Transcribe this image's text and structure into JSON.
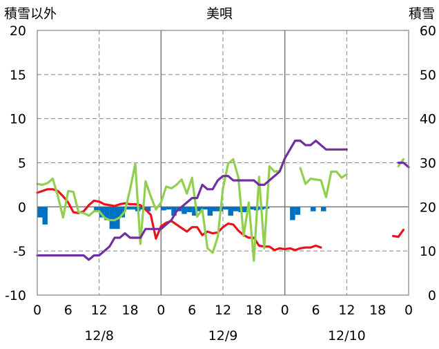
{
  "chart_data": {
    "type": "line",
    "title": "美唄",
    "left_axis_label": "積雪以外",
    "right_axis_label": "積雪",
    "left_ylim": [
      -10,
      20
    ],
    "left_ticks": [
      20,
      15,
      10,
      5,
      0,
      -5,
      -10
    ],
    "right_ylim": [
      0,
      60
    ],
    "right_ticks": [
      60,
      50,
      40,
      30,
      20,
      10,
      0
    ],
    "x_range_hours": [
      0,
      72
    ],
    "x_tick_labels": [
      "0",
      "6",
      "12",
      "18",
      "0",
      "6",
      "12",
      "18",
      "0",
      "6",
      "12",
      "18",
      "0"
    ],
    "date_labels": [
      "12/8",
      "12/9",
      "12/10"
    ],
    "grid": true,
    "colors": {
      "temperature": "#e8141b",
      "wind": "#92cf50",
      "snow_depth": "#7030a0",
      "precipitation": "#0070c0",
      "grid": "#808080"
    },
    "series": [
      {
        "key": "temperature",
        "axis": "left",
        "style": "line",
        "points": [
          [
            0,
            1.6
          ],
          [
            1,
            1.8
          ],
          [
            2,
            2.0
          ],
          [
            3,
            2.0
          ],
          [
            4,
            1.8
          ],
          [
            5,
            1.2
          ],
          [
            6,
            0.5
          ],
          [
            7,
            -0.6
          ],
          [
            8,
            -0.7
          ],
          [
            9,
            -0.5
          ],
          [
            10,
            0.2
          ],
          [
            11,
            0.7
          ],
          [
            12,
            0.6
          ],
          [
            13,
            0.3
          ],
          [
            14,
            0.2
          ],
          [
            15,
            0.1
          ],
          [
            16,
            0.3
          ],
          [
            17,
            0.4
          ],
          [
            18,
            0.3
          ],
          [
            19,
            0.3
          ],
          [
            20,
            0.2
          ],
          [
            21,
            -0.3
          ],
          [
            22,
            -0.9
          ],
          [
            23,
            -3.6
          ],
          [
            24,
            -2.2
          ],
          [
            25,
            -1.8
          ],
          [
            26,
            -1.6
          ],
          [
            27,
            -2.0
          ],
          [
            28,
            -2.4
          ],
          [
            29,
            -2.8
          ],
          [
            30,
            -2.3
          ],
          [
            31,
            -2.3
          ],
          [
            32,
            -3.2
          ],
          [
            33,
            -2.8
          ],
          [
            34,
            -3.0
          ],
          [
            35,
            -2.9
          ],
          [
            36,
            -2.3
          ],
          [
            37,
            -1.9
          ],
          [
            38,
            -2.0
          ],
          [
            39,
            -2.7
          ],
          [
            40,
            -3.2
          ],
          [
            41,
            -3.5
          ],
          [
            42,
            -3.5
          ],
          [
            43,
            -4.4
          ],
          [
            44,
            -4.5
          ],
          [
            45,
            -4.5
          ],
          [
            46,
            -4.9
          ],
          [
            47,
            -4.7
          ],
          [
            48,
            -4.8
          ],
          [
            49,
            -4.7
          ],
          [
            50,
            -4.9
          ],
          [
            51,
            -4.7
          ],
          [
            52,
            -4.6
          ],
          [
            53,
            -4.6
          ],
          [
            54,
            -4.4
          ],
          [
            55,
            -4.6
          ]
        ]
      },
      {
        "key": "temperature_tail",
        "axis": "left",
        "style": "line",
        "color_key": "temperature",
        "points": [
          [
            69,
            -3.3
          ],
          [
            70,
            -3.4
          ],
          [
            71,
            -2.6
          ]
        ]
      },
      {
        "key": "wind",
        "axis": "left",
        "style": "line",
        "points": [
          [
            0,
            2.6
          ],
          [
            1,
            2.5
          ],
          [
            2,
            2.7
          ],
          [
            3,
            3.2
          ],
          [
            4,
            1.2
          ],
          [
            5,
            -1.2
          ],
          [
            6,
            1.8
          ],
          [
            7,
            1.7
          ],
          [
            8,
            -0.6
          ],
          [
            9,
            -0.7
          ],
          [
            10,
            -1.0
          ],
          [
            11,
            -0.5
          ],
          [
            12,
            -0.5
          ],
          [
            13,
            -1.2
          ],
          [
            14,
            -1.5
          ],
          [
            15,
            -1.5
          ],
          [
            16,
            -1.2
          ],
          [
            17,
            -0.5
          ],
          [
            18,
            2.0
          ],
          [
            19,
            4.9
          ],
          [
            20,
            -4.2
          ],
          [
            21,
            2.9
          ],
          [
            22,
            1.2
          ],
          [
            23,
            -0.3
          ],
          [
            24,
            0.5
          ],
          [
            25,
            2.3
          ],
          [
            26,
            2.1
          ],
          [
            27,
            2.5
          ],
          [
            28,
            3.1
          ],
          [
            29,
            1.5
          ],
          [
            30,
            3.3
          ],
          [
            31,
            -1.1
          ],
          [
            32,
            -0.3
          ],
          [
            33,
            -4.7
          ],
          [
            34,
            -5.2
          ],
          [
            35,
            -3.4
          ],
          [
            36,
            2.1
          ],
          [
            37,
            4.9
          ],
          [
            38,
            5.4
          ],
          [
            39,
            3.3
          ],
          [
            40,
            -3.3
          ],
          [
            41,
            0.5
          ],
          [
            42,
            -6.1
          ],
          [
            43,
            3.4
          ],
          [
            44,
            -4.7
          ],
          [
            45,
            4.6
          ],
          [
            46,
            4.0
          ],
          [
            47,
            4.1
          ],
          [
            48,
            5.5
          ]
        ]
      },
      {
        "key": "wind_tail",
        "axis": "left",
        "style": "line",
        "color_key": "wind",
        "points": [
          [
            51,
            4.4
          ],
          [
            52,
            2.6
          ],
          [
            53,
            3.2
          ],
          [
            54,
            3.1
          ],
          [
            55,
            3.0
          ],
          [
            56,
            1.1
          ],
          [
            57,
            4.0
          ],
          [
            58,
            4.0
          ],
          [
            59,
            3.3
          ],
          [
            60,
            3.7
          ]
        ]
      },
      {
        "key": "wind_end",
        "axis": "left",
        "style": "line",
        "color_key": "wind",
        "points": [
          [
            70,
            4.6
          ],
          [
            71,
            5.4
          ]
        ]
      },
      {
        "key": "snow_depth",
        "axis": "right",
        "style": "line",
        "points": [
          [
            0,
            9
          ],
          [
            1,
            9
          ],
          [
            2,
            9
          ],
          [
            3,
            9
          ],
          [
            4,
            9
          ],
          [
            5,
            9
          ],
          [
            6,
            9
          ],
          [
            7,
            9
          ],
          [
            8,
            9
          ],
          [
            9,
            9
          ],
          [
            10,
            8
          ],
          [
            11,
            9
          ],
          [
            12,
            9
          ],
          [
            13,
            10
          ],
          [
            14,
            11
          ],
          [
            15,
            13
          ],
          [
            16,
            13
          ],
          [
            17,
            14
          ],
          [
            18,
            13
          ],
          [
            19,
            13
          ],
          [
            20,
            13
          ],
          [
            21,
            15
          ],
          [
            22,
            15
          ],
          [
            23,
            15
          ],
          [
            24,
            15
          ],
          [
            25,
            16
          ],
          [
            26,
            17
          ],
          [
            27,
            19
          ],
          [
            28,
            20
          ],
          [
            29,
            21
          ],
          [
            30,
            22
          ],
          [
            31,
            22
          ],
          [
            32,
            25
          ],
          [
            33,
            24
          ],
          [
            34,
            24
          ],
          [
            35,
            26
          ],
          [
            36,
            27
          ],
          [
            37,
            27
          ],
          [
            38,
            26
          ],
          [
            39,
            26
          ],
          [
            40,
            26
          ],
          [
            41,
            26
          ],
          [
            42,
            26
          ],
          [
            43,
            25
          ],
          [
            44,
            25
          ],
          [
            45,
            26
          ],
          [
            46,
            27
          ],
          [
            47,
            28
          ],
          [
            48,
            31
          ],
          [
            49,
            33
          ],
          [
            50,
            35
          ],
          [
            51,
            35
          ],
          [
            52,
            34
          ],
          [
            53,
            34
          ],
          [
            54,
            35
          ],
          [
            55,
            34
          ],
          [
            56,
            33
          ],
          [
            57,
            33
          ],
          [
            58,
            33
          ],
          [
            59,
            33
          ],
          [
            60,
            33
          ]
        ]
      },
      {
        "key": "snow_depth_tail",
        "axis": "right",
        "style": "line",
        "color_key": "snow_depth",
        "points": [
          [
            70,
            30
          ],
          [
            71,
            30
          ],
          [
            72,
            29
          ]
        ]
      },
      {
        "key": "precipitation",
        "axis": "left",
        "style": "bar",
        "points": [
          [
            0,
            -1.2
          ],
          [
            1,
            -2.0
          ],
          [
            11,
            -0.5
          ],
          [
            12,
            -1.2
          ],
          [
            13,
            -1.5
          ],
          [
            14,
            -2.5
          ],
          [
            15,
            -2.5
          ],
          [
            16,
            -1.2
          ],
          [
            17,
            -0.3
          ],
          [
            18,
            -0.3
          ],
          [
            19,
            -0.5
          ],
          [
            20,
            -0.3
          ],
          [
            21,
            -0.5
          ],
          [
            24,
            -0.4
          ],
          [
            25,
            -0.3
          ],
          [
            26,
            -1.0
          ],
          [
            27,
            -0.5
          ],
          [
            28,
            -0.8
          ],
          [
            29,
            -0.6
          ],
          [
            30,
            -1.0
          ],
          [
            31,
            -0.5
          ],
          [
            32,
            -0.3
          ],
          [
            33,
            -1.0
          ],
          [
            34,
            -0.5
          ],
          [
            35,
            -0.5
          ],
          [
            36,
            -0.3
          ],
          [
            37,
            -1.0
          ],
          [
            38,
            -0.5
          ],
          [
            39,
            -0.6
          ],
          [
            40,
            -0.6
          ],
          [
            41,
            -0.3
          ],
          [
            42,
            -0.4
          ],
          [
            43,
            -0.3
          ],
          [
            44,
            -0.2
          ],
          [
            49,
            -1.5
          ],
          [
            50,
            -0.9
          ],
          [
            53,
            -0.5
          ],
          [
            55,
            -0.5
          ]
        ]
      }
    ]
  }
}
